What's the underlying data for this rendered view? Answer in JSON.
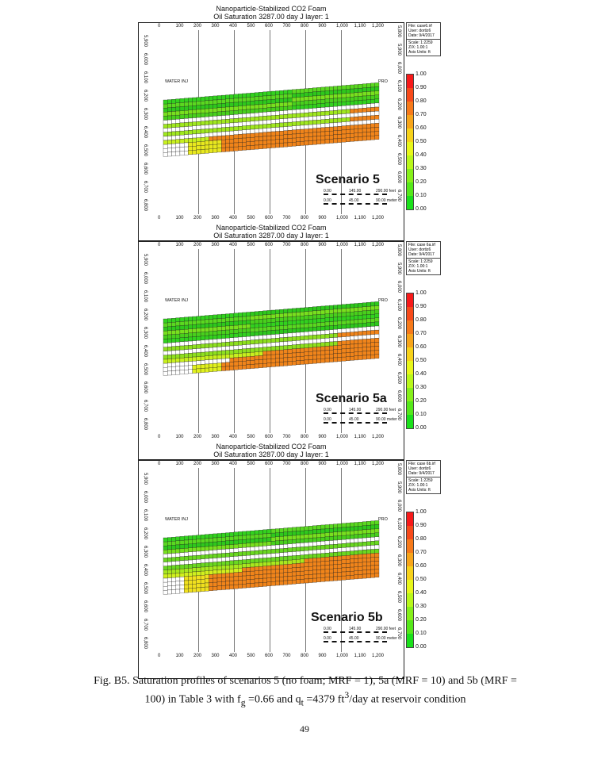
{
  "colors": {
    "legend": [
      "#f71a1a",
      "#f74a1a",
      "#f77a1a",
      "#f7a51a",
      "#f7d21a",
      "#e8f71a",
      "#b8f71a",
      "#86f01a",
      "#55e81a",
      "#1ae01a"
    ],
    "white": "#ffffff",
    "orange": "#f0841a"
  },
  "panels": [
    {
      "title": "Nanoparticle-Stabilized CO2 Foam",
      "subtitle": "Oil Saturation  3287.00 day    J layer: 1",
      "info": {
        "file": "File: case6.irf",
        "user": "User: dortiz6",
        "date": "Date: 9/4/2017",
        "scale": "Scale: 1:2259",
        "zx": "Z/X: 1.00:1",
        "units": "Axis Units: ft"
      },
      "scenario": "Scenario 5",
      "pattern": "s5"
    },
    {
      "title": "Nanoparticle-Stabilized CO2 Foam",
      "subtitle": "Oil Saturation  3287.00 day    J layer: 1",
      "info": {
        "file": "File: case 6a.irf",
        "user": "User: dortiz6",
        "date": "Date: 9/4/2017",
        "scale": "Scale: 1:2259",
        "zx": "Z/X: 1.00:1",
        "units": "Axis Units: ft"
      },
      "scenario": "Scenario 5a",
      "pattern": "s5a"
    },
    {
      "title": "Nanoparticle-Stabilized CO2 Foam",
      "subtitle": "Oil Saturation  3287.00 day    J layer: 1",
      "info": {
        "file": "File: case 6b.irf",
        "user": "User: dortiz6",
        "date": "Date: 9/4/2017",
        "scale": "Scale: 1:2259",
        "zx": "Z/X: 1.00:1",
        "units": "Axis Units: ft"
      },
      "scenario": "Scenario 5b",
      "pattern": "s5b"
    }
  ],
  "x_ticks": [
    "0",
    "100",
    "200",
    "300",
    "400",
    "500",
    "600",
    "700",
    "800",
    "900",
    "1,000",
    "1,100",
    "1,200"
  ],
  "y_ticks": [
    "5,900",
    "6,000",
    "6,100",
    "6,200",
    "6,300",
    "6,400",
    "6,500",
    "6,600",
    "6,700",
    "6,800"
  ],
  "y_ticks_right": [
    "5,800",
    "5,900",
    "6,000",
    "6,100",
    "6,200",
    "6,300",
    "6,400",
    "6,500",
    "6,600",
    "6,700"
  ],
  "legend_labels": [
    "1.00",
    "0.90",
    "0.80",
    "0.70",
    "0.60",
    "0.50",
    "0.40",
    "0.30",
    "0.20",
    "0.10",
    "0.00"
  ],
  "scale": {
    "feet_left": "0.00",
    "feet_mid": "145.00",
    "feet_right": "290.00 feet",
    "m_left": "0.00",
    "m_mid": "45.00",
    "m_right": "90.00 meter"
  },
  "wells": {
    "inj": "WATER INJ",
    "pro": "PRO"
  },
  "caption_line1": "Fig. B5. Saturation profiles of scenarios 5 (no foam; MRF = 1), 5a (MRF = 10) and 5b (MRF =",
  "caption_line2_pre": "100) in Table 3 with f",
  "caption_sub_g": "g",
  "caption_line2_mid": " =0.66 and q",
  "caption_sub_t": "t",
  "caption_line2_post": " =4379 ft",
  "caption_sup": "3",
  "caption_line2_end": "/day at reservoir condition",
  "page_number": "49"
}
